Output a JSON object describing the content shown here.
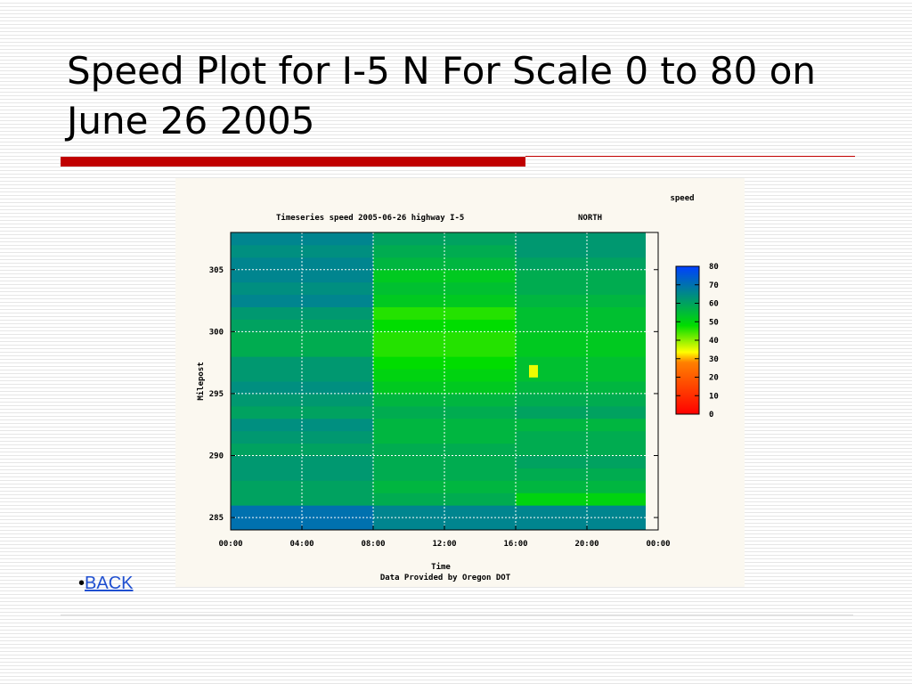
{
  "slide": {
    "title": "Speed Plot for I-5 N For Scale 0 to 80 on June 26 2005",
    "bullet": "•",
    "back_link": "BACK"
  },
  "colors": {
    "accent_rule": "#c00000",
    "link": "#1f4fd0"
  },
  "chart_data": {
    "type": "heatmap",
    "title": "Timeseries speed 2005-06-26 highway I-5",
    "direction": "NORTH",
    "colorbar_label": "speed",
    "xlabel": "Time",
    "source": "Data Provided by Oregon DOT",
    "ylabel": "Milepost",
    "x_ticks": [
      "00:00",
      "04:00",
      "08:00",
      "12:00",
      "16:00",
      "20:00",
      "00:00"
    ],
    "x_range_hours": [
      0,
      24
    ],
    "data_extent_hours": [
      0,
      23.3
    ],
    "y_ticks": [
      285,
      290,
      295,
      300,
      305
    ],
    "y_range": [
      284,
      308
    ],
    "colorbar_ticks": [
      0,
      10,
      20,
      30,
      40,
      50,
      60,
      70,
      80
    ],
    "colorbar_range": [
      0,
      80
    ],
    "colormap": [
      "#ff0000",
      "#ff8000",
      "#ffff00",
      "#00dd00",
      "#0040ff"
    ],
    "grid": true,
    "mileposts": [
      284.5,
      285.5,
      286.5,
      287.5,
      288.5,
      289.5,
      290.5,
      291.5,
      292.5,
      293.5,
      294.5,
      295.5,
      296.5,
      297.5,
      298.5,
      299.5,
      300.5,
      301.5,
      302.5,
      303.5,
      304.5,
      305.5,
      306.5,
      307.5
    ],
    "time_blocks": [
      {
        "from": 0,
        "to": 8,
        "speeds": [
          70,
          70,
          60,
          60,
          62,
          62,
          60,
          62,
          64,
          60,
          62,
          64,
          62,
          62,
          58,
          58,
          60,
          62,
          66,
          64,
          66,
          66,
          64,
          66
        ]
      },
      {
        "from": 8,
        "to": 16,
        "speeds": [
          66,
          66,
          58,
          56,
          58,
          58,
          58,
          56,
          56,
          58,
          56,
          52,
          50,
          48,
          46,
          46,
          48,
          46,
          52,
          54,
          52,
          56,
          58,
          60
        ]
      },
      {
        "from": 16,
        "to": 23.3,
        "speeds": [
          66,
          66,
          50,
          56,
          58,
          60,
          58,
          58,
          56,
          60,
          58,
          56,
          54,
          54,
          52,
          52,
          54,
          54,
          56,
          58,
          58,
          60,
          62,
          62
        ]
      }
    ],
    "hotspot": {
      "time_hours": 17,
      "milepost": 296.8,
      "speed": 35
    }
  }
}
